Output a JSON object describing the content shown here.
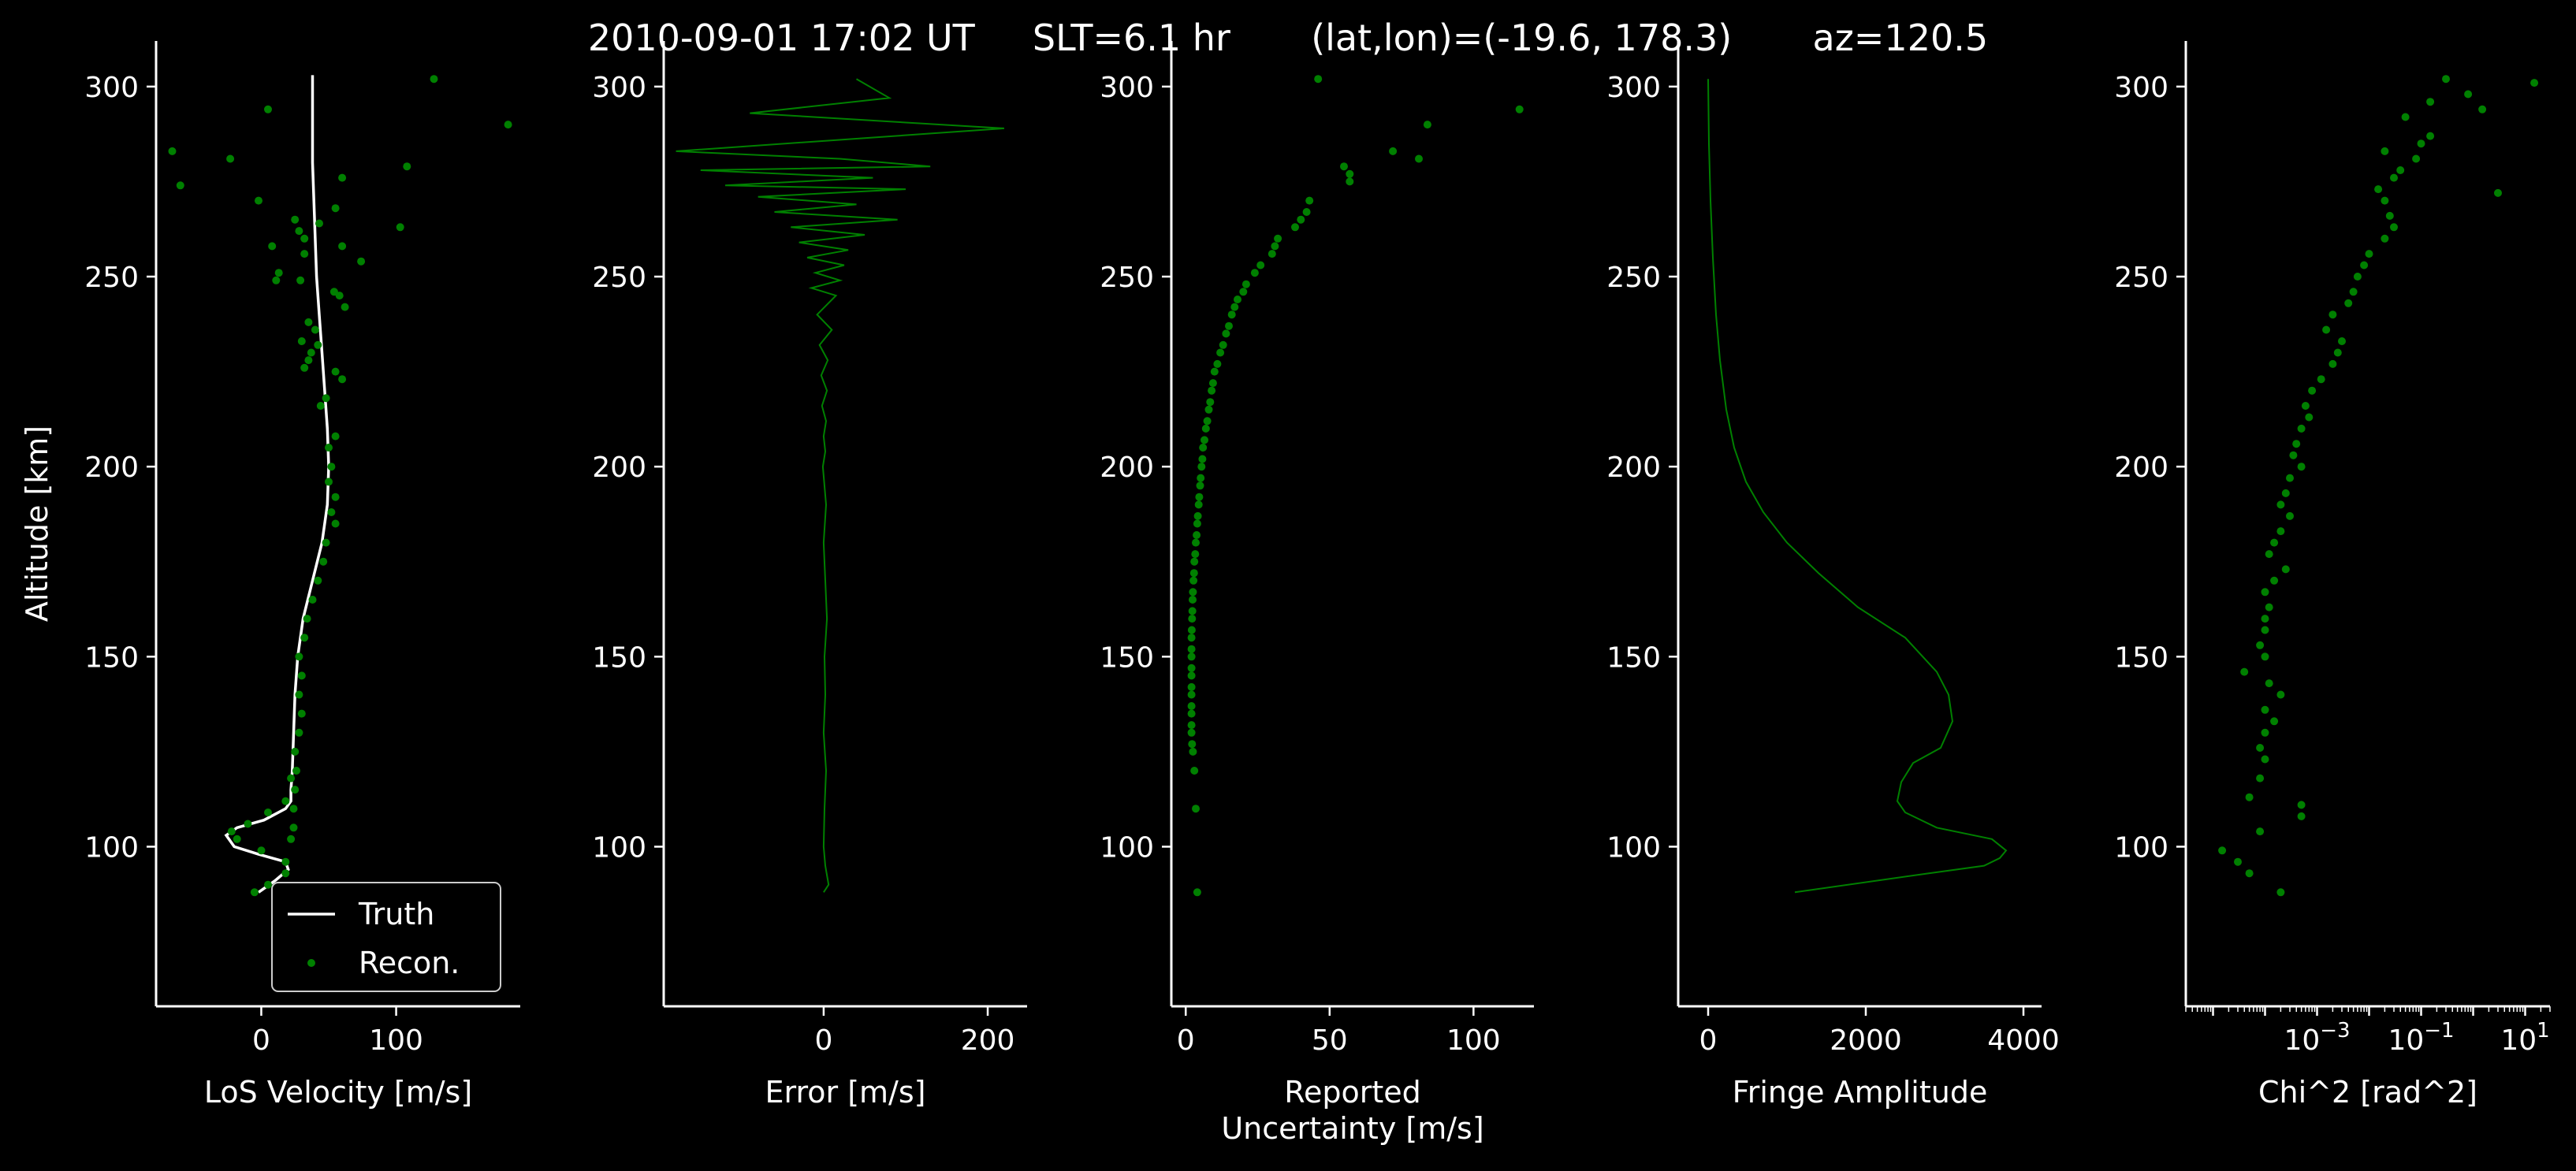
{
  "title": "2010-09-01 17:02 UT     SLT=6.1 hr       (lat,lon)=(-19.6, 178.3)       az=120.5",
  "colors": {
    "background": "#000000",
    "axis": "#ffffff",
    "truth": "#ffffff",
    "recon": "#008000"
  },
  "chart_data": [
    {
      "type": "line",
      "xlabel": "LoS Velocity [m/s]",
      "ylabel": "Altitude [km]",
      "xlim": [
        -78,
        192
      ],
      "ylim": [
        58,
        312
      ],
      "xticks": [
        0,
        100
      ],
      "yticks": [
        100,
        150,
        200,
        250,
        300
      ],
      "legend": {
        "placement": "lower-right",
        "entries": [
          "Truth",
          "Recon."
        ]
      },
      "series": [
        {
          "name": "Truth",
          "style": "line",
          "x": [
            38,
            38,
            38,
            39,
            40,
            41,
            43,
            45,
            47,
            49,
            50,
            49,
            45,
            38,
            31,
            27,
            25,
            24,
            23,
            22,
            22,
            18,
            2,
            -18,
            -26,
            -20,
            -2,
            18,
            20,
            10,
            -2
          ],
          "y": [
            303,
            290,
            280,
            270,
            260,
            250,
            240,
            230,
            220,
            210,
            200,
            190,
            180,
            170,
            160,
            150,
            140,
            130,
            120,
            115,
            112,
            110,
            107,
            105,
            103,
            100,
            98,
            96,
            94,
            91,
            88
          ]
        },
        {
          "name": "Recon.",
          "style": "scatter",
          "x": [
            128,
            5,
            183,
            -66,
            -60,
            -23,
            60,
            108,
            -2,
            103,
            43,
            25,
            32,
            55,
            60,
            74,
            32,
            28,
            8,
            13,
            29,
            11,
            54,
            58,
            62,
            35,
            30,
            37,
            35,
            40,
            32,
            42,
            55,
            60,
            44,
            48,
            55,
            50,
            52,
            50,
            55,
            52,
            55,
            48,
            46,
            42,
            38,
            34,
            32,
            28,
            30,
            28,
            30,
            28,
            25,
            26,
            25,
            24,
            24,
            22,
            22,
            18,
            5,
            -10,
            -22,
            -18,
            0,
            18,
            18,
            5,
            -5
          ],
          "y": [
            302,
            294,
            290,
            283,
            274,
            281,
            276,
            279,
            270,
            263,
            264,
            265,
            260,
            268,
            258,
            254,
            256,
            262,
            258,
            251,
            249,
            249,
            246,
            245,
            242,
            238,
            233,
            230,
            228,
            236,
            226,
            232,
            225,
            223,
            216,
            218,
            208,
            205,
            200,
            196,
            192,
            188,
            185,
            180,
            175,
            170,
            165,
            160,
            155,
            150,
            145,
            140,
            135,
            130,
            125,
            120,
            115,
            110,
            105,
            102,
            118,
            112,
            109,
            106,
            104,
            102,
            99,
            96,
            93,
            90,
            88
          ]
        }
      ]
    },
    {
      "type": "line",
      "xlabel": "Error [m/s]",
      "xlim": [
        -195,
        248
      ],
      "ylim": [
        58,
        312
      ],
      "xticks": [
        0,
        200
      ],
      "yticks": [
        100,
        150,
        200,
        250,
        300
      ],
      "series": [
        {
          "style": "line",
          "x": [
            40,
            80,
            -90,
            220,
            -180,
            20,
            130,
            -150,
            60,
            -120,
            100,
            -80,
            40,
            -60,
            90,
            -40,
            50,
            -30,
            30,
            -20,
            25,
            -10,
            20,
            -15,
            15,
            -8,
            10,
            -5,
            5,
            -3,
            4,
            -2,
            3,
            0,
            2,
            -1,
            3,
            0,
            2,
            4,
            1,
            2,
            0,
            3,
            1,
            0,
            2,
            6,
            0
          ],
          "y": [
            302,
            297,
            293,
            289,
            283,
            281,
            279,
            278,
            276,
            274,
            273,
            271,
            269,
            267,
            265,
            263,
            261,
            259,
            257,
            255,
            253,
            251,
            249,
            247,
            245,
            240,
            236,
            232,
            228,
            224,
            220,
            216,
            212,
            208,
            204,
            200,
            190,
            180,
            170,
            160,
            150,
            140,
            130,
            120,
            110,
            100,
            95,
            90,
            88
          ]
        }
      ]
    },
    {
      "type": "scatter",
      "xlabel": "Reported Uncertainty [m/s]",
      "xlim": [
        -5,
        121
      ],
      "ylim": [
        58,
        312
      ],
      "xticks": [
        0,
        50,
        100
      ],
      "yticks": [
        100,
        150,
        200,
        250,
        300
      ],
      "series": [
        {
          "style": "scatter",
          "x": [
            46,
            116,
            84,
            72,
            81,
            55,
            57,
            57,
            43,
            42,
            40,
            38,
            32,
            31,
            30,
            26,
            24,
            21,
            20,
            18,
            17,
            16,
            15,
            14,
            13,
            12,
            11,
            10,
            9.5,
            9,
            8.5,
            8,
            7.5,
            7,
            6.5,
            6,
            5.8,
            5.5,
            5.2,
            5,
            4.7,
            4.5,
            4.2,
            4,
            3.8,
            3.5,
            3.3,
            3,
            2.9,
            2.7,
            2.5,
            2.4,
            2.3,
            2.2,
            2.1,
            2,
            2,
            2,
            2,
            2,
            2,
            2,
            2,
            2,
            2,
            2,
            2.2,
            2.5,
            3,
            3.5,
            4
          ],
          "y": [
            302,
            294,
            290,
            283,
            281,
            279,
            277,
            275,
            270,
            267,
            265,
            263,
            260,
            258,
            256,
            253,
            251,
            248,
            246,
            244,
            242,
            240,
            237,
            235,
            232,
            230,
            227,
            225,
            222,
            220,
            217,
            215,
            212,
            210,
            207,
            205,
            202,
            200,
            197,
            195,
            192,
            190,
            187,
            185,
            182,
            180,
            177,
            175,
            172,
            170,
            167,
            165,
            162,
            160,
            157,
            155,
            152,
            150,
            147,
            145,
            142,
            140,
            137,
            135,
            132,
            130,
            127,
            125,
            120,
            110,
            88
          ]
        }
      ]
    },
    {
      "type": "line",
      "xlabel": "Fringe Amplitude",
      "xlim": [
        -380,
        4230
      ],
      "ylim": [
        58,
        312
      ],
      "xticks": [
        0,
        2000,
        4000
      ],
      "yticks": [
        100,
        150,
        200,
        250,
        300
      ],
      "series": [
        {
          "style": "line",
          "x": [
            0,
            10,
            30,
            60,
            100,
            150,
            230,
            330,
            480,
            700,
            1000,
            1400,
            1900,
            2500,
            2900,
            3050,
            3100,
            2950,
            2600,
            2450,
            2400,
            2500,
            2900,
            3600,
            3780,
            3700,
            3500,
            2800,
            1100
          ],
          "y": [
            302,
            285,
            270,
            255,
            240,
            228,
            215,
            205,
            196,
            188,
            180,
            172,
            163,
            155,
            146,
            140,
            133,
            126,
            122,
            117,
            112,
            109,
            105,
            102,
            99,
            97,
            95,
            93,
            88
          ]
        }
      ]
    },
    {
      "type": "scatter",
      "xlabel": "Chi^2 [rad^2]",
      "xscale": "log",
      "xlim": [
        3e-06,
        30
      ],
      "ylim": [
        58,
        312
      ],
      "xticks": [
        0.001,
        0.1,
        10
      ],
      "xtick_labels": [
        "10^-3",
        "10^-1",
        "10^1"
      ],
      "yticks": [
        100,
        150,
        200,
        250,
        300
      ],
      "series": [
        {
          "style": "scatter",
          "x": [
            0.3,
            15,
            0.8,
            3,
            1.5,
            0.15,
            0.05,
            0.15,
            0.1,
            0.08,
            0.02,
            0.04,
            0.03,
            0.015,
            0.02,
            0.025,
            0.03,
            0.02,
            0.01,
            0.008,
            0.006,
            0.005,
            0.004,
            0.002,
            0.0015,
            0.003,
            0.0025,
            0.002,
            0.0012,
            0.0008,
            0.0006,
            0.0007,
            0.0005,
            0.0004,
            0.00035,
            0.0005,
            0.0003,
            0.00025,
            0.0002,
            0.0003,
            0.0002,
            0.00015,
            0.00012,
            0.00025,
            0.00015,
            0.0001,
            0.00012,
            0.0001,
            0.0001,
            8e-05,
            0.0001,
            4e-05,
            0.00012,
            0.0002,
            0.0001,
            0.00015,
            0.0001,
            8e-05,
            0.0001,
            0.0005,
            0.0005,
            8e-05,
            5e-05,
            8e-05,
            1.5e-05,
            3e-05,
            5e-05,
            0.0002
          ],
          "y": [
            302,
            301,
            298,
            272,
            294,
            296,
            292,
            287,
            285,
            281,
            283,
            278,
            276,
            273,
            270,
            266,
            263,
            260,
            256,
            253,
            250,
            246,
            243,
            240,
            236,
            233,
            230,
            227,
            223,
            220,
            216,
            213,
            210,
            206,
            203,
            200,
            197,
            193,
            190,
            187,
            183,
            180,
            177,
            173,
            170,
            167,
            163,
            160,
            157,
            153,
            150,
            146,
            143,
            140,
            136,
            133,
            130,
            126,
            123,
            111,
            108,
            118,
            113,
            104,
            99,
            96,
            93,
            88
          ]
        }
      ]
    }
  ]
}
